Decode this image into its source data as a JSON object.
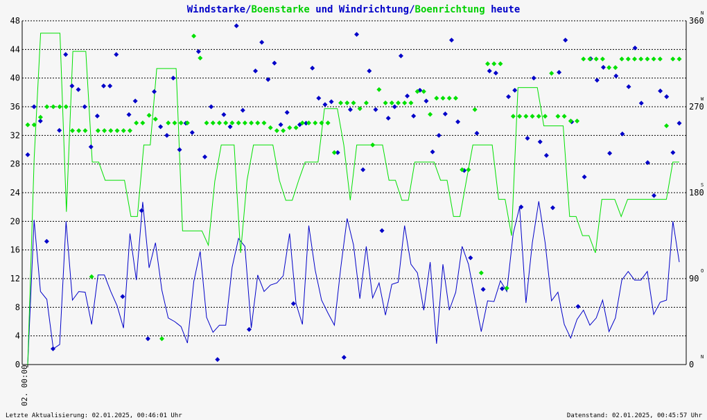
{
  "title": {
    "part1": "Windstarke",
    "sep1": "/",
    "part2": "Boenstarke",
    "mid": " und ",
    "part3": "Windrichtung",
    "sep2": "/",
    "part4": "Boenrichtung",
    "tail": " heute"
  },
  "footer": {
    "left": "Letzte Aktualisierung: 02.01.2025, 00:46:01 Uhr",
    "right": "Datenstand: 02.01.2025, 00:45:57 Uhr"
  },
  "colors": {
    "speed": "#0000c8",
    "gust": "#00e000",
    "grid": "#000000",
    "text": "#000000",
    "background": "#f6f6f6"
  },
  "chart_data": {
    "type": "line",
    "x_tick_label": "02. 00:00",
    "y_left": {
      "min": 0,
      "max": 48,
      "ticks": [
        0,
        4,
        8,
        12,
        16,
        20,
        24,
        28,
        32,
        36,
        40,
        44,
        48
      ]
    },
    "y_right": {
      "min": 0,
      "max": 360,
      "ticks": [
        0,
        90,
        180,
        270,
        360
      ],
      "compass": [
        "N",
        "O",
        "S",
        "W",
        "N"
      ]
    },
    "grid": "dashed-horizontal",
    "series": [
      {
        "kind": "line",
        "axis": "left",
        "values": [
          0,
          20.2,
          10.2,
          9.1,
          2.2,
          2.8,
          20,
          9,
          10.2,
          10.1,
          5.6,
          12.5,
          12.5,
          10.2,
          8.2,
          5.1,
          18.3,
          11.8,
          22.7,
          13.5,
          17,
          10.4,
          6.5,
          6,
          5.3,
          3,
          11.6,
          15.8,
          6.6,
          4.5,
          5.5,
          5.5,
          13.6,
          17.6,
          16.5,
          5.1,
          12.5,
          10.2,
          11.1,
          11.4,
          12.4,
          18.3,
          8.5,
          5.6,
          19.4,
          13.2,
          9,
          7.2,
          5.5,
          13.5,
          20.4,
          16.7,
          9.2,
          16.5,
          9.3,
          11.4,
          6.9,
          11.2,
          11.5,
          19.4,
          14,
          12.8,
          7.6,
          14.3,
          2.9,
          14,
          7.6,
          10.1,
          16.5,
          14,
          9.2,
          4.6,
          8.9,
          8.8,
          11.7,
          10.2,
          18.3,
          22,
          8.6,
          17,
          22.8,
          17,
          8.9,
          10.1,
          5.6,
          3.7,
          6.3,
          7.6,
          5.5,
          6.5,
          9,
          4.6,
          6.5,
          11.8,
          13,
          11.8,
          11.8,
          13,
          7,
          8.7,
          9,
          20,
          14.3
        ]
      },
      {
        "kind": "line",
        "axis": "right",
        "values": [
          0,
          216,
          347,
          347,
          347,
          347,
          160,
          328,
          328,
          328,
          212,
          212,
          193,
          193,
          193,
          193,
          155,
          155,
          230,
          230,
          310,
          310,
          310,
          310,
          140,
          140,
          140,
          140,
          125,
          192,
          230,
          230,
          230,
          117,
          193,
          230,
          230,
          230,
          230,
          193,
          172,
          172,
          193,
          212,
          212,
          212,
          268,
          268,
          268,
          230,
          172,
          230,
          230,
          230,
          230,
          230,
          193,
          193,
          172,
          172,
          212,
          212,
          212,
          212,
          193,
          193,
          155,
          155,
          193,
          230,
          230,
          230,
          230,
          173,
          173,
          135,
          290,
          290,
          290,
          290,
          250,
          250,
          250,
          250,
          155,
          155,
          135,
          135,
          117,
          173,
          173,
          173,
          155,
          173,
          173,
          173,
          173,
          173,
          173,
          173,
          212,
          212
        ]
      },
      {
        "kind": "points",
        "axis": "left",
        "values": [
          29.3,
          36,
          34,
          17.2,
          2.2,
          32.7,
          43.3,
          38.9,
          38.4,
          36,
          30.4,
          34.7,
          38.9,
          38.9,
          43.3,
          9.5,
          34.9,
          36.8,
          21.5,
          3.6,
          38.1,
          33.2,
          32,
          40,
          30,
          33.7,
          32.4,
          43.7,
          29,
          36,
          0.7,
          34.9,
          33.2,
          47.3,
          35.5,
          4.9,
          41,
          45,
          39.8,
          42.1,
          33.5,
          35.2,
          8.5,
          33.5,
          33.7,
          41.4,
          37.2,
          36.3,
          36.7,
          29.6,
          1,
          35.6,
          46.1,
          27.2,
          41,
          35.6,
          18.7,
          34.4,
          36,
          43.1,
          37.5,
          34.7,
          38.3,
          36.8,
          29.7,
          32,
          35,
          45.3,
          33.9,
          27.1,
          14.9,
          32.3,
          10.5,
          41,
          40.7,
          10.6,
          37.4,
          38.3,
          22,
          31.6,
          40,
          31.1,
          29.2,
          21.9,
          40.8,
          45.3,
          33.9,
          8.1,
          26.2,
          42.7,
          39.7,
          41.5,
          29.5,
          40.3,
          32.2,
          38.8,
          44.2,
          36.5,
          28.2,
          23.6,
          38.2,
          37.4,
          29.6,
          33.7
        ]
      },
      {
        "kind": "points",
        "axis": "right",
        "values": [
          251,
          251,
          259,
          270,
          270,
          270,
          270,
          245,
          245,
          245,
          92,
          245,
          245,
          245,
          245,
          245,
          245,
          253,
          253,
          261,
          257,
          27,
          253,
          253,
          253,
          253,
          344,
          321,
          253,
          253,
          253,
          253,
          253,
          253,
          253,
          253,
          253,
          253,
          248,
          245,
          245,
          248,
          248,
          253,
          253,
          253,
          253,
          253,
          222,
          274,
          274,
          274,
          268,
          274,
          230,
          288,
          274,
          274,
          274,
          274,
          274,
          286,
          286,
          262,
          279,
          279,
          279,
          279,
          204,
          204,
          267,
          96,
          315,
          315,
          315,
          80,
          260,
          260,
          260,
          260,
          260,
          260,
          305,
          260,
          260,
          255,
          255,
          320,
          320,
          320,
          320,
          311,
          311,
          320,
          320,
          320,
          320,
          320,
          320,
          320,
          250,
          320,
          320
        ]
      }
    ]
  }
}
